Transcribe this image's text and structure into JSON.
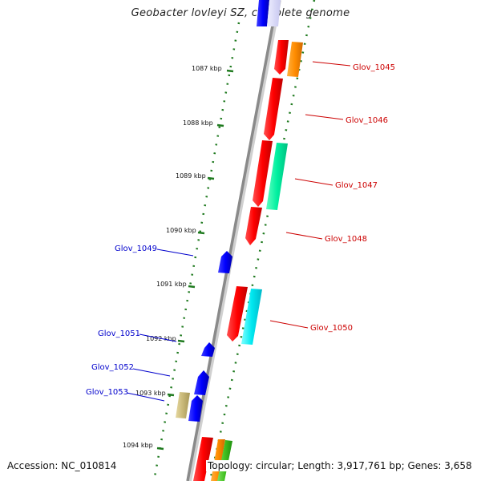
{
  "title": "Geobacter lovleyi SZ, complete genome",
  "footer": {
    "accession": "Accession: NC_010814",
    "topology": "Topology: circular; Length: 3,917,761 bp; Genes: 3,658"
  },
  "colors": {
    "forward_label": "#cc0000",
    "reverse_label": "#0000cc",
    "backbone": "#8a8a8a",
    "ticks": "#1f7a1f"
  },
  "kbp_ticks": [
    "1087 kbp",
    "1088 kbp",
    "1089 kbp",
    "1090 kbp",
    "1091 kbp",
    "1092 kbp",
    "1093 kbp",
    "1094 kbp"
  ],
  "genes": [
    {
      "label": "Glov_1045",
      "strand": "+"
    },
    {
      "label": "Glov_1046",
      "strand": "+"
    },
    {
      "label": "Glov_1047",
      "strand": "+"
    },
    {
      "label": "Glov_1048",
      "strand": "+"
    },
    {
      "label": "Glov_1049",
      "strand": "-"
    },
    {
      "label": "Glov_1050",
      "strand": "+"
    },
    {
      "label": "Glov_1051",
      "strand": "-"
    },
    {
      "label": "Glov_1052",
      "strand": "-"
    },
    {
      "label": "Glov_1053",
      "strand": "-"
    }
  ]
}
